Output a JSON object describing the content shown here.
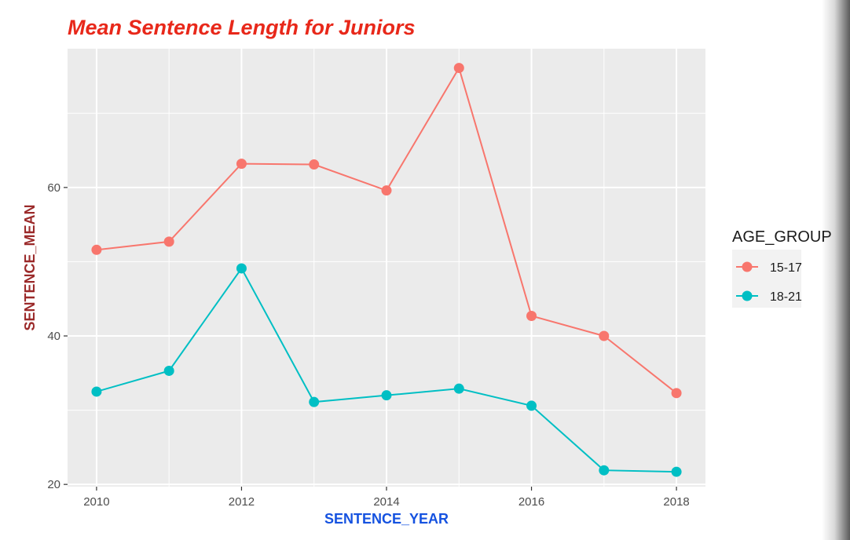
{
  "chart_data": {
    "type": "line",
    "title": "Mean Sentence Length for Juniors",
    "xlabel": "SENTENCE_YEAR",
    "ylabel": "SENTENCE_MEAN",
    "x": [
      2010,
      2011,
      2012,
      2013,
      2014,
      2015,
      2016,
      2017,
      2018
    ],
    "x_ticks": [
      2010,
      2012,
      2014,
      2016,
      2018
    ],
    "y_ticks": [
      20,
      40,
      60
    ],
    "xlim": [
      2009.6,
      2018.4
    ],
    "ylim": [
      19.7,
      78.7
    ],
    "grid": true,
    "legend_title": "AGE_GROUP",
    "legend_position": "right",
    "series": [
      {
        "name": "15-17",
        "color": "#F8766D",
        "values": [
          51.6,
          52.7,
          63.2,
          63.1,
          59.6,
          76.1,
          42.7,
          40.0,
          32.3
        ]
      },
      {
        "name": "18-21",
        "color": "#00BFC4",
        "values": [
          32.5,
          35.3,
          49.1,
          31.1,
          32.0,
          32.9,
          30.6,
          21.9,
          21.7
        ]
      }
    ],
    "colors": {
      "title": "#e8281a",
      "xlabel": "#1552e0",
      "ylabel": "#9b2a2a",
      "panel": "#ebebeb",
      "grid": "#ffffff"
    }
  }
}
